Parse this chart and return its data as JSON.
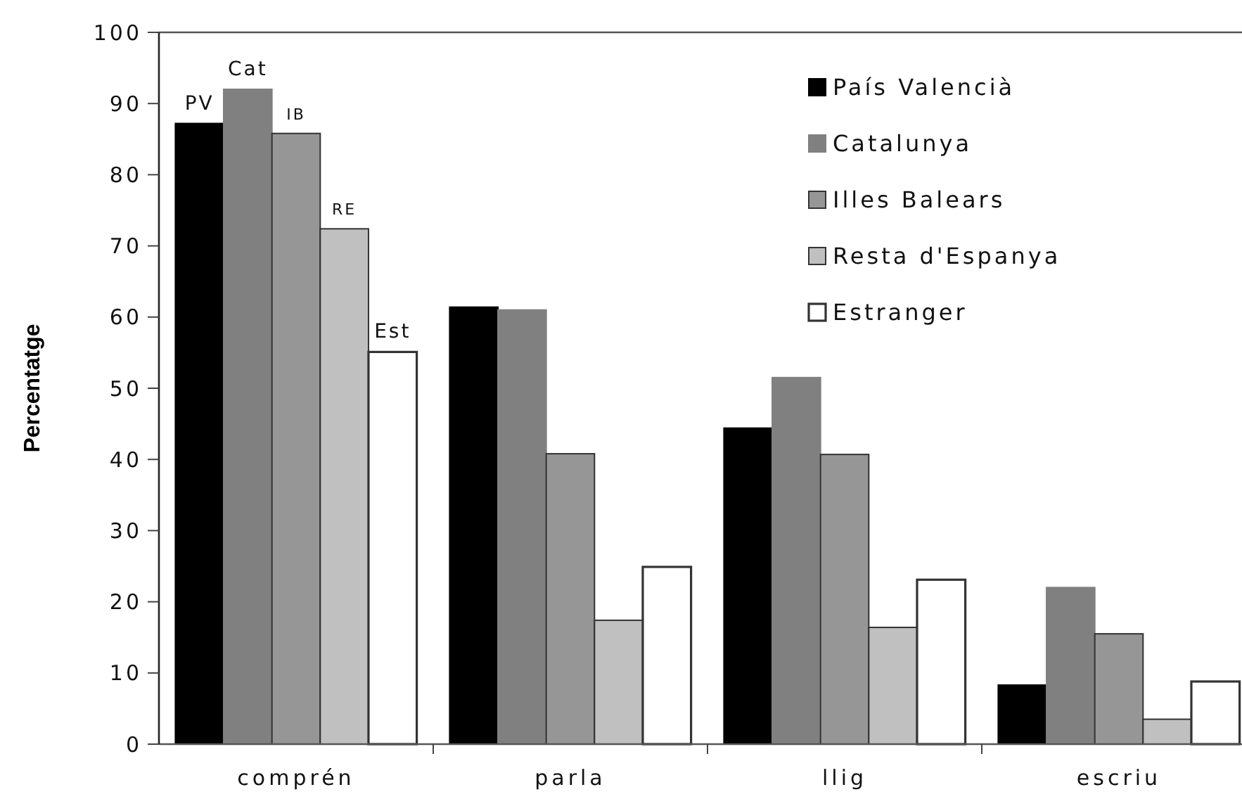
{
  "chart_data": {
    "type": "bar",
    "ylabel": "Percentatge",
    "categories": [
      "comprén",
      "parla",
      "llig",
      "escriu"
    ],
    "series": [
      {
        "name": "País Valencià",
        "color": "#000000",
        "values": [
          87.2,
          61.4,
          44.4,
          8.3
        ]
      },
      {
        "name": "Catalunya",
        "color": "#808080",
        "values": [
          92.0,
          61.0,
          51.5,
          22.0
        ]
      },
      {
        "name": "Illes Balears",
        "color": "#969696",
        "values": [
          85.8,
          40.8,
          40.7,
          15.5
        ]
      },
      {
        "name": "Resta d'Espanya",
        "color": "#c0c0c0",
        "values": [
          72.4,
          17.4,
          16.4,
          3.5
        ]
      },
      {
        "name": "Estranger",
        "color": "#ffffff",
        "values": [
          55.1,
          24.9,
          23.1,
          8.8
        ]
      }
    ],
    "annotations": [
      "PV",
      "Cat",
      "IB",
      "RE",
      "Est"
    ],
    "ylim": [
      0,
      100
    ],
    "yticks": [
      0,
      10,
      20,
      30,
      40,
      50,
      60,
      70,
      80,
      90,
      100
    ],
    "grid": false,
    "legend": "top right"
  }
}
